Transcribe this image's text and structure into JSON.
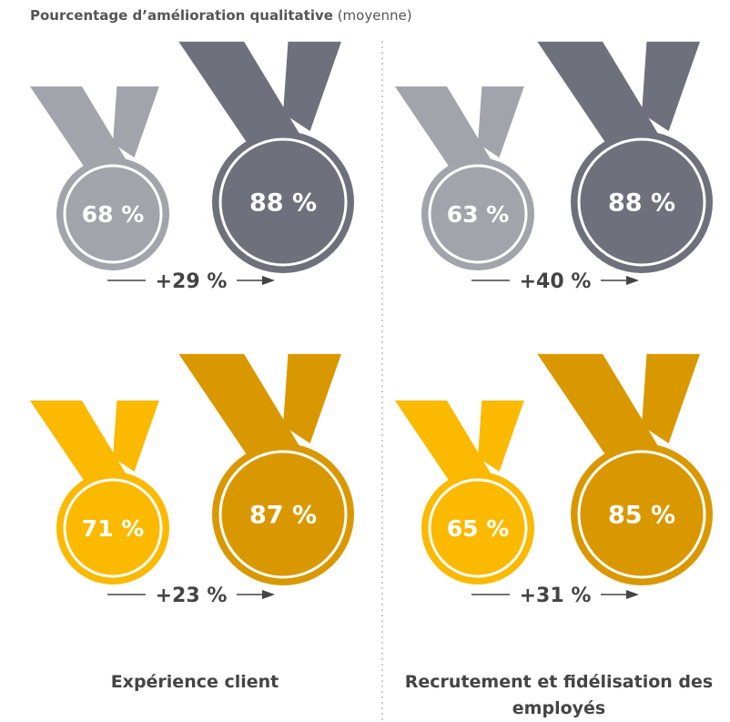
{
  "title": {
    "main": "Pourcentage d’amélioration qualitative",
    "note": "(moyenne)"
  },
  "columns": [
    {
      "label": "Expérience client",
      "groups": [
        {
          "before": "68 %",
          "after": "88 %",
          "change": "+29 %"
        },
        {
          "before": "71 %",
          "after": "87 %",
          "change": "+23 %"
        }
      ]
    },
    {
      "label": "Recrutement et fidélisation des employés",
      "groups": [
        {
          "before": "63 %",
          "after": "88 %",
          "change": "+40 %"
        },
        {
          "before": "65 %",
          "after": "85 %",
          "change": "+31 %"
        }
      ]
    }
  ]
}
